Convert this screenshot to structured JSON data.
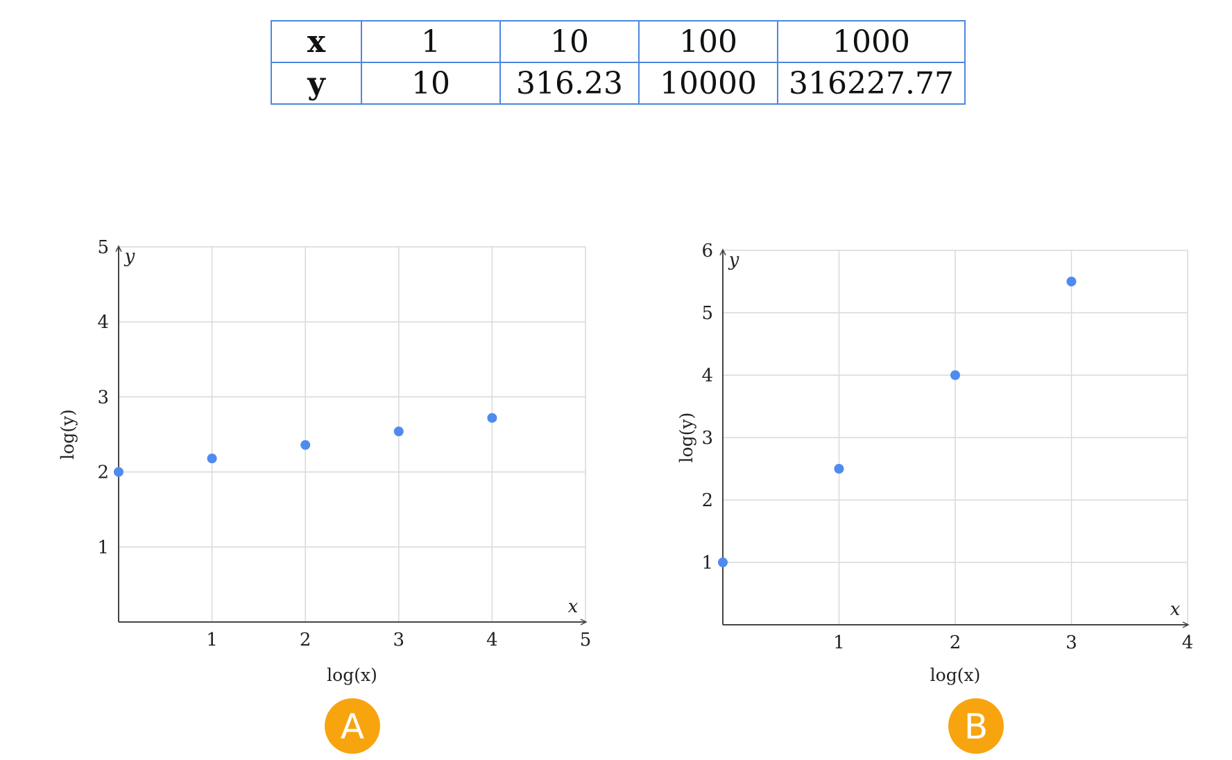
{
  "table": {
    "headers": [
      "x",
      "y"
    ],
    "x_values": [
      "1",
      "10",
      "100",
      "1000"
    ],
    "y_values": [
      "10",
      "316.23",
      "10000",
      "316227.77"
    ],
    "border_color": "#4f86dd"
  },
  "chart_data": [
    {
      "type": "scatter",
      "badge": "A",
      "xlabel": "log(x)",
      "ylabel": "log(y)",
      "x_axis_var": "x",
      "y_axis_var": "y",
      "xlim": [
        0,
        5
      ],
      "ylim": [
        0,
        5
      ],
      "x_ticks": [
        1,
        2,
        3,
        4,
        5
      ],
      "y_ticks": [
        1,
        2,
        3,
        4,
        5
      ],
      "grid": true,
      "x": [
        0,
        1,
        2,
        3,
        4
      ],
      "y": [
        2,
        2.18,
        2.36,
        2.54,
        2.72
      ],
      "point_color": "#4f8bef"
    },
    {
      "type": "scatter",
      "badge": "B",
      "xlabel": "log(x)",
      "ylabel": "log(y)",
      "x_axis_var": "x",
      "y_axis_var": "y",
      "xlim": [
        0,
        4
      ],
      "ylim": [
        0,
        6
      ],
      "x_ticks": [
        1,
        2,
        3,
        4
      ],
      "y_ticks": [
        1,
        2,
        3,
        4,
        5,
        6
      ],
      "grid": true,
      "x": [
        0,
        1,
        2,
        3
      ],
      "y": [
        1,
        2.5,
        4,
        5.5
      ],
      "point_color": "#4f8bef"
    }
  ],
  "badge_color": "#f8a40f",
  "grid_color": "#d9d9d9"
}
